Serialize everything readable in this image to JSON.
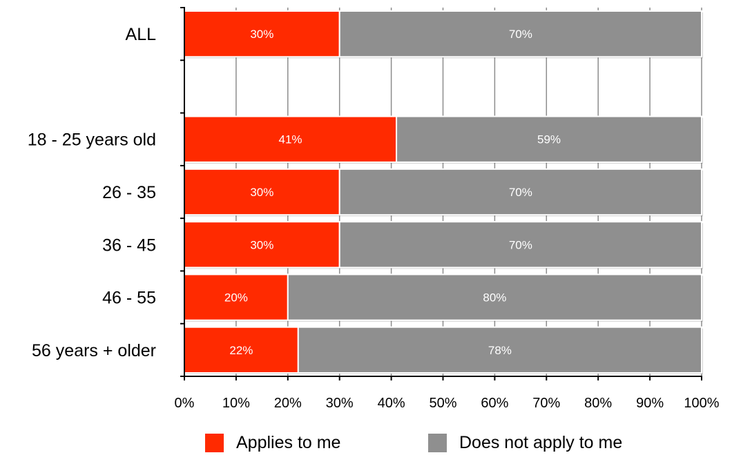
{
  "chart_data": {
    "type": "bar",
    "orientation": "horizontal",
    "stacked": true,
    "categories": [
      "ALL",
      "",
      "18 - 25 years old",
      "26 - 35",
      "36 - 45",
      "46 - 55",
      "56 years + older"
    ],
    "series": [
      {
        "name": "Applies to me",
        "color": "#ff2a00",
        "values": [
          30,
          null,
          41,
          30,
          30,
          20,
          22
        ],
        "labels": [
          "30%",
          "",
          "41%",
          "30%",
          "30%",
          "20%",
          "22%"
        ]
      },
      {
        "name": "Does not apply to me",
        "color": "#8f8f8f",
        "values": [
          70,
          null,
          59,
          70,
          70,
          80,
          78
        ],
        "labels": [
          "70%",
          "",
          "59%",
          "70%",
          "70%",
          "80%",
          "78%"
        ]
      }
    ],
    "xticks": [
      "0%",
      "10%",
      "20%",
      "30%",
      "40%",
      "50%",
      "60%",
      "70%",
      "80%",
      "90%",
      "100%"
    ],
    "xlim": [
      0,
      100
    ],
    "grid": true,
    "legend_position": "bottom"
  }
}
